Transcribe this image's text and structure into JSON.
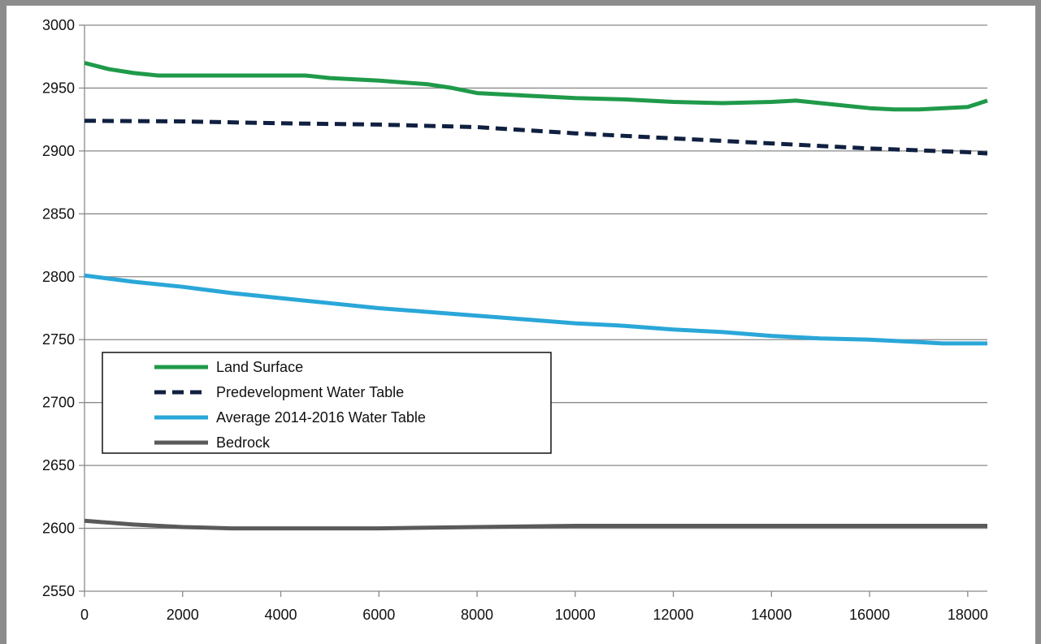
{
  "chart_data": {
    "type": "line",
    "title": "",
    "xlabel": "",
    "ylabel": "",
    "xlim": [
      0,
      18400
    ],
    "ylim": [
      2550,
      3000
    ],
    "x_ticks": [
      0,
      2000,
      4000,
      6000,
      8000,
      10000,
      12000,
      14000,
      16000,
      18000
    ],
    "y_ticks": [
      2550,
      2600,
      2650,
      2700,
      2750,
      2800,
      2850,
      2900,
      2950,
      3000
    ],
    "grid": "horizontal",
    "legend_position": "center-left",
    "series": [
      {
        "name": "Land Surface",
        "color": "#1f9a4a",
        "dash": "solid",
        "x": [
          0,
          500,
          1000,
          1500,
          2000,
          3000,
          4000,
          4500,
          5000,
          6000,
          7000,
          7500,
          8000,
          9000,
          10000,
          11000,
          12000,
          13000,
          14000,
          14500,
          15000,
          15500,
          16000,
          16500,
          17000,
          17500,
          18000,
          18400
        ],
        "y": [
          2970,
          2965,
          2962,
          2960,
          2960,
          2960,
          2960,
          2960,
          2958,
          2956,
          2953,
          2950,
          2946,
          2944,
          2942,
          2941,
          2939,
          2938,
          2939,
          2940,
          2938,
          2936,
          2934,
          2933,
          2933,
          2934,
          2935,
          2940
        ]
      },
      {
        "name": "Predevelopment Water Table",
        "color": "#102040",
        "dash": "dashed",
        "x": [
          0,
          2000,
          4000,
          6000,
          8000,
          10000,
          12000,
          14000,
          16000,
          18000,
          18400
        ],
        "y": [
          2924,
          2923.5,
          2922,
          2921,
          2919,
          2914,
          2910,
          2906,
          2902,
          2899,
          2898
        ]
      },
      {
        "name": "Average 2014-2016 Water Table",
        "color": "#2aa7d8",
        "dash": "solid",
        "x": [
          0,
          1000,
          2000,
          3000,
          4000,
          5000,
          6000,
          7000,
          8000,
          9000,
          10000,
          11000,
          12000,
          13000,
          14000,
          15000,
          16000,
          17000,
          17500,
          18000,
          18400
        ],
        "y": [
          2801,
          2796,
          2792,
          2787,
          2783,
          2779,
          2775,
          2772,
          2769,
          2766,
          2763,
          2761,
          2758,
          2756,
          2753,
          2751,
          2750,
          2748,
          2747,
          2747,
          2747
        ]
      },
      {
        "name": "Bedrock",
        "color": "#5a5a5a",
        "dash": "solid",
        "x": [
          0,
          1000,
          2000,
          3000,
          4000,
          6000,
          8000,
          10000,
          12000,
          14000,
          16000,
          18400
        ],
        "y": [
          2606,
          2603,
          2601,
          2600,
          2600,
          2600,
          2601,
          2602,
          2602,
          2602,
          2602,
          2602
        ]
      }
    ]
  }
}
